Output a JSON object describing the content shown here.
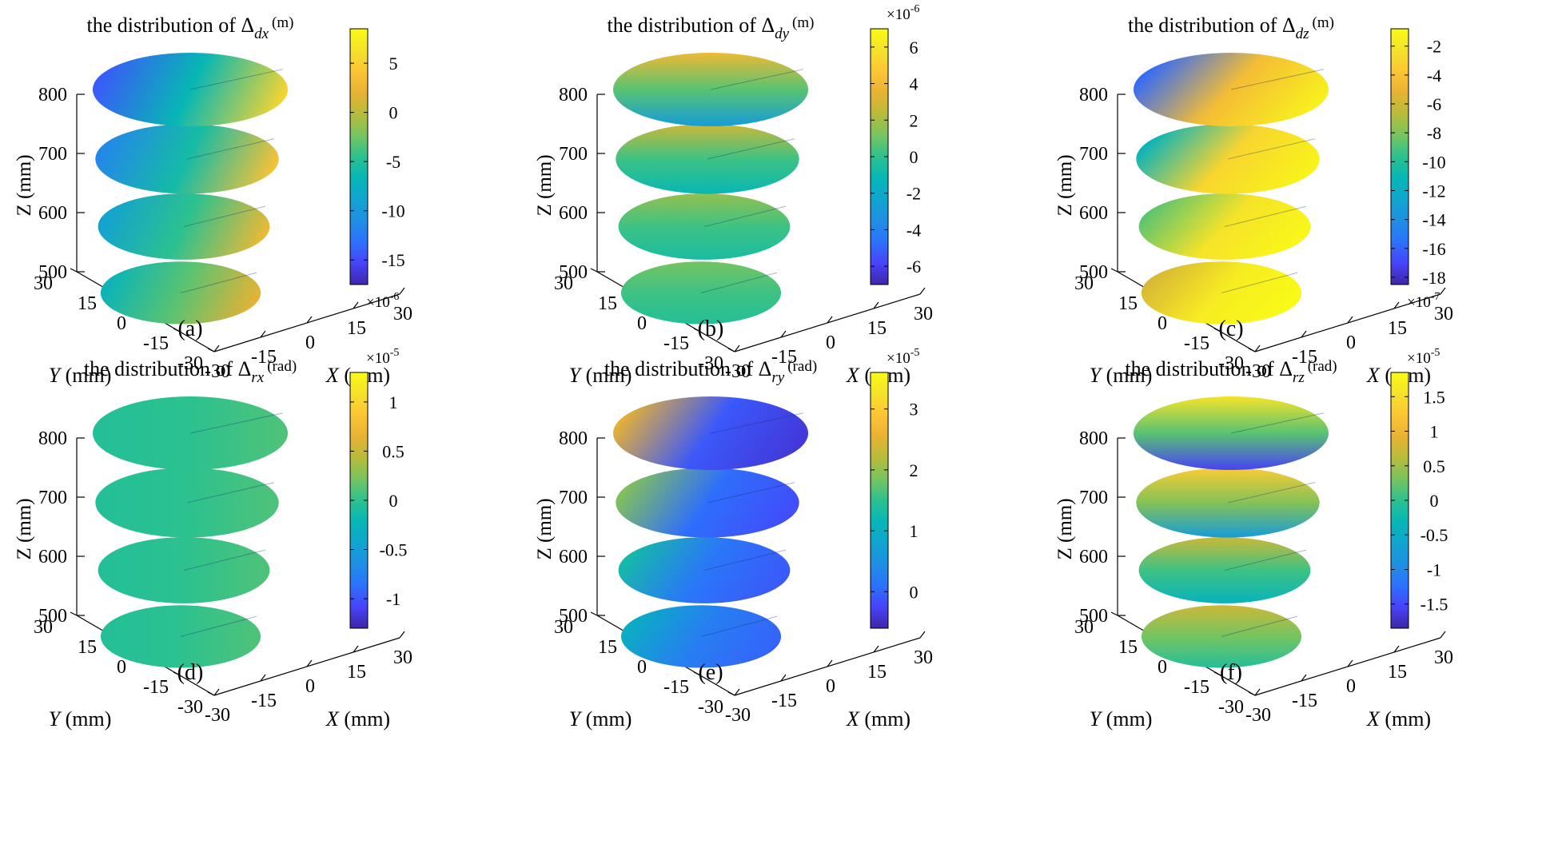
{
  "colors": {
    "parula": [
      "#3e26a8",
      "#4743f8",
      "#2c72fc",
      "#1f8fe3",
      "#10a5d0",
      "#05b7b6",
      "#2cc18f",
      "#77c45f",
      "#b8bc3a",
      "#e8b234",
      "#fcc535",
      "#f5e22a",
      "#f9fb15"
    ],
    "seam": "#102a6a"
  },
  "chart_data": [
    {
      "type": "surface",
      "panel_label": "(a)",
      "title_prefix": "the distribution of",
      "title_symbol": "Δ",
      "title_subscript": "dx",
      "title_unit": "(m)",
      "xlabel_var": "X",
      "xlabel_unit": "(mm)",
      "ylabel_var": "Y",
      "ylabel_unit": "(mm)",
      "zlabel": "Z (mm)",
      "x_ticks": [
        "-30",
        "-15",
        "0",
        "15",
        "30"
      ],
      "y_ticks": [
        "30",
        "15",
        "0",
        "-15",
        "-30"
      ],
      "z_ticks": [
        "800",
        "700",
        "600",
        "500"
      ],
      "x_range": [
        -30,
        30
      ],
      "y_range": [
        -30,
        30
      ],
      "z_range": [
        500,
        800
      ],
      "layers_z": [
        800,
        700,
        600,
        500
      ],
      "colorbar_ticks": [
        {
          "label": "5",
          "value": 5
        },
        {
          "label": "0",
          "value": 0
        },
        {
          "label": "-5",
          "value": -5
        },
        {
          "label": "-10",
          "value": -10
        },
        {
          "label": "-15",
          "value": -15
        }
      ],
      "colorbar_range": [
        -17.5,
        8.5
      ],
      "colorbar_exponent": "-6",
      "exponent_position": "bottom",
      "layer_fills": [
        {
          "angle": 10,
          "stops": [
            0.12,
            0.42,
            0.88
          ]
        },
        {
          "angle": 10,
          "stops": [
            0.22,
            0.45,
            0.82
          ]
        },
        {
          "angle": 10,
          "stops": [
            0.32,
            0.5,
            0.78
          ]
        },
        {
          "angle": 10,
          "stops": [
            0.4,
            0.55,
            0.75
          ]
        }
      ]
    },
    {
      "type": "surface",
      "panel_label": "(b)",
      "title_prefix": "the distribution of",
      "title_symbol": "Δ",
      "title_subscript": "dy",
      "title_unit": "(m)",
      "xlabel_var": "X",
      "xlabel_unit": "(mm)",
      "ylabel_var": "Y",
      "ylabel_unit": "(mm)",
      "zlabel": "Z (mm)",
      "x_ticks": [
        "-30",
        "-15",
        "0",
        "15",
        "30"
      ],
      "y_ticks": [
        "30",
        "15",
        "0",
        "-15",
        "-30"
      ],
      "z_ticks": [
        "800",
        "700",
        "600",
        "500"
      ],
      "x_range": [
        -30,
        30
      ],
      "y_range": [
        -30,
        30
      ],
      "z_range": [
        500,
        800
      ],
      "layers_z": [
        800,
        700,
        600,
        500
      ],
      "colorbar_ticks": [
        {
          "label": "6",
          "value": 6
        },
        {
          "label": "4",
          "value": 4
        },
        {
          "label": "2",
          "value": 2
        },
        {
          "label": "0",
          "value": 0
        },
        {
          "label": "-2",
          "value": -2
        },
        {
          "label": "-4",
          "value": -4
        },
        {
          "label": "-6",
          "value": -6
        }
      ],
      "colorbar_range": [
        -7,
        7
      ],
      "colorbar_exponent": "-6",
      "exponent_position": "top",
      "layer_fills": [
        {
          "angle": 90,
          "stops": [
            0.78,
            0.55,
            0.3
          ]
        },
        {
          "angle": 90,
          "stops": [
            0.7,
            0.52,
            0.42
          ]
        },
        {
          "angle": 90,
          "stops": [
            0.62,
            0.52,
            0.46
          ]
        },
        {
          "angle": 90,
          "stops": [
            0.58,
            0.52,
            0.48
          ]
        }
      ]
    },
    {
      "type": "surface",
      "panel_label": "(c)",
      "title_prefix": "the distribution of",
      "title_symbol": "Δ",
      "title_subscript": "dz",
      "title_unit": "(m)",
      "xlabel_var": "X",
      "xlabel_unit": "(mm)",
      "ylabel_var": "Y",
      "ylabel_unit": "(mm)",
      "zlabel": "Z (mm)",
      "x_ticks": [
        "-30",
        "-15",
        "0",
        "15",
        "30"
      ],
      "y_ticks": [
        "30",
        "15",
        "0",
        "-15",
        "-30"
      ],
      "z_ticks": [
        "800",
        "700",
        "600",
        "500"
      ],
      "x_range": [
        -30,
        30
      ],
      "y_range": [
        -30,
        30
      ],
      "z_range": [
        500,
        800
      ],
      "layers_z": [
        800,
        700,
        600,
        500
      ],
      "colorbar_ticks": [
        {
          "label": "-2",
          "value": -2
        },
        {
          "label": "-4",
          "value": -4
        },
        {
          "label": "-6",
          "value": -6
        },
        {
          "label": "-8",
          "value": -8
        },
        {
          "label": "-10",
          "value": -10
        },
        {
          "label": "-12",
          "value": -12
        },
        {
          "label": "-14",
          "value": -14
        },
        {
          "label": "-16",
          "value": -16
        },
        {
          "label": "-18",
          "value": -18
        }
      ],
      "colorbar_range": [
        -18.5,
        -0.8
      ],
      "colorbar_exponent": "-7",
      "exponent_position": "bottom",
      "layer_fills": [
        {
          "angle": 20,
          "stops": [
            0.15,
            0.8,
            0.97
          ]
        },
        {
          "angle": 20,
          "stops": [
            0.4,
            0.88,
            0.98
          ]
        },
        {
          "angle": 20,
          "stops": [
            0.55,
            0.92,
            0.99
          ]
        },
        {
          "angle": 20,
          "stops": [
            0.72,
            0.95,
            1.0
          ]
        }
      ]
    },
    {
      "type": "surface",
      "panel_label": "(d)",
      "title_prefix": "the distribution of",
      "title_symbol": "Δ",
      "title_subscript": "rx",
      "title_unit": "(rad)",
      "xlabel_var": "X",
      "xlabel_unit": "(mm)",
      "ylabel_var": "Y",
      "ylabel_unit": "(mm)",
      "zlabel": "Z (mm)",
      "x_ticks": [
        "-30",
        "-15",
        "0",
        "15",
        "30"
      ],
      "y_ticks": [
        "30",
        "15",
        "0",
        "-15",
        "-30"
      ],
      "z_ticks": [
        "800",
        "700",
        "600",
        "500"
      ],
      "x_range": [
        -30,
        30
      ],
      "y_range": [
        -30,
        30
      ],
      "z_range": [
        500,
        800
      ],
      "layers_z": [
        800,
        700,
        600,
        500
      ],
      "colorbar_ticks": [
        {
          "label": "1",
          "value": 1
        },
        {
          "label": "0.5",
          "value": 0.5
        },
        {
          "label": "0",
          "value": 0
        },
        {
          "label": "-0.5",
          "value": -0.5
        },
        {
          "label": "-1",
          "value": -1
        }
      ],
      "colorbar_range": [
        -1.3,
        1.3
      ],
      "colorbar_exponent": "-5",
      "exponent_position": "top",
      "layer_fills": [
        {
          "angle": 0,
          "stops": [
            0.48,
            0.5,
            0.54
          ]
        },
        {
          "angle": 0,
          "stops": [
            0.48,
            0.5,
            0.54
          ]
        },
        {
          "angle": 0,
          "stops": [
            0.48,
            0.5,
            0.54
          ]
        },
        {
          "angle": 0,
          "stops": [
            0.48,
            0.5,
            0.54
          ]
        }
      ]
    },
    {
      "type": "surface",
      "panel_label": "(e)",
      "title_prefix": "the distribution of",
      "title_symbol": "Δ",
      "title_subscript": "ry",
      "title_unit": "(rad)",
      "xlabel_var": "X",
      "xlabel_unit": "(mm)",
      "ylabel_var": "Y",
      "ylabel_unit": "(mm)",
      "zlabel": "Z (mm)",
      "x_ticks": [
        "-30",
        "-15",
        "0",
        "15",
        "30"
      ],
      "y_ticks": [
        "30",
        "15",
        "0",
        "-15",
        "-30"
      ],
      "z_ticks": [
        "800",
        "700",
        "600",
        "500"
      ],
      "x_range": [
        -30,
        30
      ],
      "y_range": [
        -30,
        30
      ],
      "z_range": [
        500,
        800
      ],
      "layers_z": [
        800,
        700,
        600,
        500
      ],
      "colorbar_ticks": [
        {
          "label": "3",
          "value": 3
        },
        {
          "label": "2",
          "value": 2
        },
        {
          "label": "1",
          "value": 1
        },
        {
          "label": "0",
          "value": 0
        }
      ],
      "colorbar_range": [
        -0.6,
        3.6
      ],
      "colorbar_exponent": "-5",
      "exponent_position": "top",
      "layer_fills": [
        {
          "angle": 195,
          "stops": [
            0.05,
            0.12,
            0.75
          ]
        },
        {
          "angle": 195,
          "stops": [
            0.1,
            0.16,
            0.6
          ]
        },
        {
          "angle": 195,
          "stops": [
            0.12,
            0.18,
            0.45
          ]
        },
        {
          "angle": 195,
          "stops": [
            0.14,
            0.2,
            0.38
          ]
        }
      ]
    },
    {
      "type": "surface",
      "panel_label": "(f)",
      "title_prefix": "the distribution of",
      "title_symbol": "Δ",
      "title_subscript": "rz",
      "title_unit": "(rad)",
      "xlabel_var": "X",
      "xlabel_unit": "(mm)",
      "ylabel_var": "Y",
      "ylabel_unit": "(mm)",
      "zlabel": "Z (mm)",
      "x_ticks": [
        "-30",
        "-15",
        "0",
        "15",
        "30"
      ],
      "y_ticks": [
        "30",
        "15",
        "0",
        "-15",
        "-30"
      ],
      "z_ticks": [
        "800",
        "700",
        "600",
        "500"
      ],
      "x_range": [
        -30,
        30
      ],
      "y_range": [
        -30,
        30
      ],
      "z_range": [
        500,
        800
      ],
      "layers_z": [
        800,
        700,
        600,
        500
      ],
      "colorbar_ticks": [
        {
          "label": "1.5",
          "value": 1.5
        },
        {
          "label": "1",
          "value": 1
        },
        {
          "label": "0.5",
          "value": 0.5
        },
        {
          "label": "0",
          "value": 0
        },
        {
          "label": "-0.5",
          "value": -0.5
        },
        {
          "label": "-1",
          "value": -1
        },
        {
          "label": "-1.5",
          "value": -1.5
        }
      ],
      "colorbar_range": [
        -1.85,
        1.85
      ],
      "colorbar_exponent": "-5",
      "exponent_position": "top",
      "layer_fills": [
        {
          "angle": 270,
          "stops": [
            0.08,
            0.55,
            0.92
          ]
        },
        {
          "angle": 270,
          "stops": [
            0.3,
            0.6,
            0.85
          ]
        },
        {
          "angle": 270,
          "stops": [
            0.4,
            0.52,
            0.7
          ]
        },
        {
          "angle": 270,
          "stops": [
            0.48,
            0.58,
            0.7
          ]
        }
      ]
    }
  ]
}
